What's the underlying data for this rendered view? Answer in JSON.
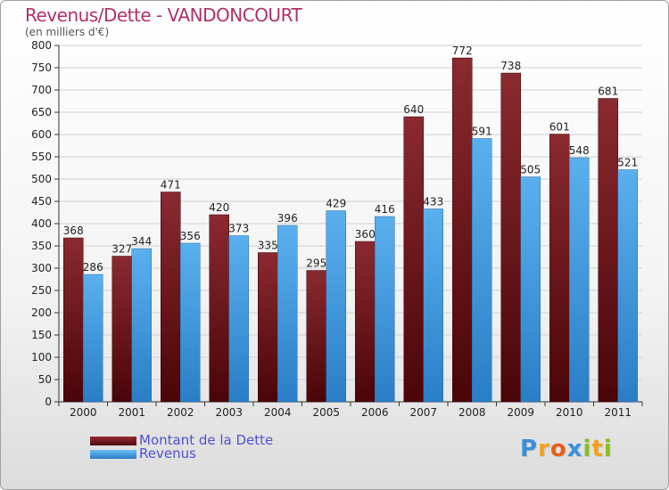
{
  "title": "Revenus/Dette - VANDONCOURT",
  "subtitle": "(en milliers d'€)",
  "brand": {
    "letters": [
      {
        "ch": "P",
        "color": "#3a8fd8"
      },
      {
        "ch": "r",
        "color": "#f2a21a"
      },
      {
        "ch": "o",
        "color": "#e85d1a"
      },
      {
        "ch": "x",
        "color": "#3a8fd8"
      },
      {
        "ch": "i",
        "color": "#8cbc1f"
      },
      {
        "ch": "t",
        "color": "#f2a21a"
      },
      {
        "ch": "i",
        "color": "#8cbc1f"
      }
    ]
  },
  "chart_data": {
    "type": "bar",
    "categories": [
      "2000",
      "2001",
      "2002",
      "2003",
      "2004",
      "2005",
      "2006",
      "2007",
      "2008",
      "2009",
      "2010",
      "2011"
    ],
    "series": [
      {
        "name": "Montant de la Dette",
        "color": "#7a1c22",
        "values": [
          368,
          327,
          471,
          420,
          335,
          295,
          360,
          640,
          772,
          738,
          601,
          681
        ]
      },
      {
        "name": "Revenus",
        "color": "#4ea6e8",
        "values": [
          286,
          344,
          356,
          373,
          396,
          429,
          416,
          433,
          591,
          505,
          548,
          521
        ]
      }
    ],
    "ylim": [
      0,
      800
    ],
    "yticks": [
      "0",
      "50",
      "100",
      "150",
      "200",
      "250",
      "300",
      "350",
      "400",
      "450",
      "500",
      "550",
      "600",
      "650",
      "700",
      "750",
      "800"
    ],
    "grid": true,
    "legend": "bottom-left"
  }
}
